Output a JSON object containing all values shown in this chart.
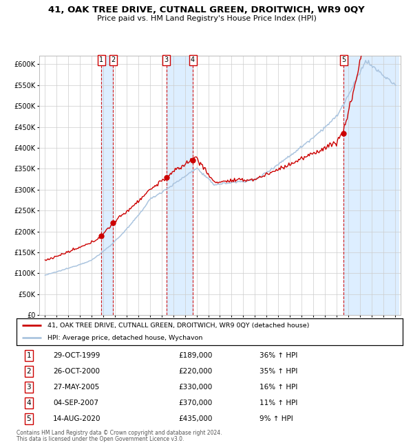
{
  "title": "41, OAK TREE DRIVE, CUTNALL GREEN, DROITWICH, WR9 0QY",
  "subtitle": "Price paid vs. HM Land Registry's House Price Index (HPI)",
  "legend_line1": "41, OAK TREE DRIVE, CUTNALL GREEN, DROITWICH, WR9 0QY (detached house)",
  "legend_line2": "HPI: Average price, detached house, Wychavon",
  "footer1": "Contains HM Land Registry data © Crown copyright and database right 2024.",
  "footer2": "This data is licensed under the Open Government Licence v3.0.",
  "sales": [
    {
      "num": 1,
      "date_dec": 1999.83,
      "price": 189000,
      "label": "29-OCT-1999",
      "pct": "36%",
      "dir": "↑"
    },
    {
      "num": 2,
      "date_dec": 2000.83,
      "price": 220000,
      "label": "26-OCT-2000",
      "pct": "35%",
      "dir": "↑"
    },
    {
      "num": 3,
      "date_dec": 2005.41,
      "price": 330000,
      "label": "27-MAY-2005",
      "pct": "16%",
      "dir": "↑"
    },
    {
      "num": 4,
      "date_dec": 2007.67,
      "price": 370000,
      "label": "04-SEP-2007",
      "pct": "11%",
      "dir": "↑"
    },
    {
      "num": 5,
      "date_dec": 2020.62,
      "price": 435000,
      "label": "14-AUG-2020",
      "pct": "9%",
      "dir": "↑"
    }
  ],
  "hpi_color": "#aac4df",
  "red_color": "#cc0000",
  "sale_dot_color": "#cc0000",
  "shade_color": "#ddeeff",
  "dashed_color": "#cc0000",
  "bg_color": "#ffffff",
  "grid_color": "#cccccc",
  "ylim": [
    0,
    620000
  ],
  "yticks": [
    0,
    50000,
    100000,
    150000,
    200000,
    250000,
    300000,
    350000,
    400000,
    450000,
    500000,
    550000,
    600000
  ],
  "xlim": [
    1994.5,
    2025.5
  ],
  "xticks": [
    1995,
    1996,
    1997,
    1998,
    1999,
    2000,
    2001,
    2002,
    2003,
    2004,
    2005,
    2006,
    2007,
    2008,
    2009,
    2010,
    2011,
    2012,
    2013,
    2014,
    2015,
    2016,
    2017,
    2018,
    2019,
    2020,
    2021,
    2022,
    2023,
    2024,
    2025
  ]
}
